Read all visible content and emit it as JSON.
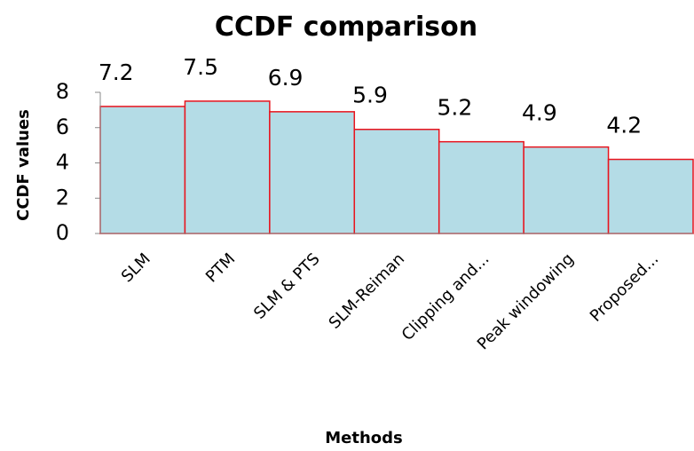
{
  "chart_data": {
    "type": "bar",
    "title": "CCDF comparison",
    "x_label": "Methods",
    "y_label": "CCDF values",
    "categories": [
      "SLM",
      "PTM",
      "SLM & PTS",
      "SLM-Reiman",
      "Clipping and...",
      "Peak windowing",
      "Proposed..."
    ],
    "values": [
      7.2,
      7.5,
      6.9,
      5.9,
      5.2,
      4.9,
      4.2
    ],
    "color": "#b4dce6",
    "edge_color": "#e8141e",
    "ylim": [
      0,
      8
    ],
    "yticks": [
      0,
      2,
      4,
      6,
      8
    ],
    "grid": false
  }
}
